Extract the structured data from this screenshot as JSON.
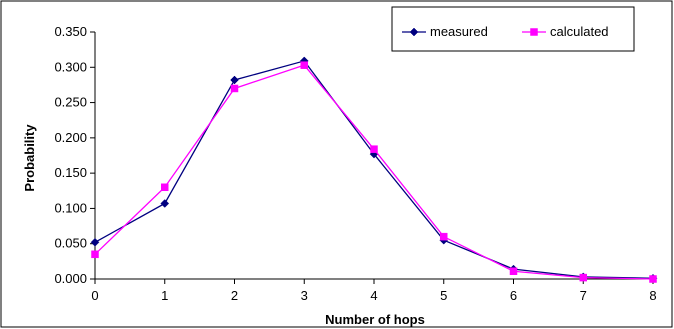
{
  "chart_data": {
    "type": "line",
    "title": "",
    "xlabel": "Number of hops",
    "ylabel": "Probability",
    "x": [
      0,
      1,
      2,
      3,
      4,
      5,
      6,
      7,
      8
    ],
    "xlim": [
      0,
      8
    ],
    "ylim": [
      0,
      0.35
    ],
    "yticks": [
      "0.000",
      "0.050",
      "0.100",
      "0.150",
      "0.200",
      "0.250",
      "0.300",
      "0.350"
    ],
    "xticks": [
      "0",
      "1",
      "2",
      "3",
      "4",
      "5",
      "6",
      "7",
      "8"
    ],
    "grid": false,
    "legend_position": "top-right",
    "series": [
      {
        "name": "measured",
        "color": "#000080",
        "marker": "diamond",
        "values": [
          0.052,
          0.107,
          0.282,
          0.309,
          0.177,
          0.055,
          0.014,
          0.003,
          0.001
        ]
      },
      {
        "name": "calculated",
        "color": "#ff00ff",
        "marker": "square",
        "values": [
          0.035,
          0.13,
          0.27,
          0.303,
          0.184,
          0.06,
          0.011,
          0.002,
          0.0
        ]
      }
    ]
  }
}
